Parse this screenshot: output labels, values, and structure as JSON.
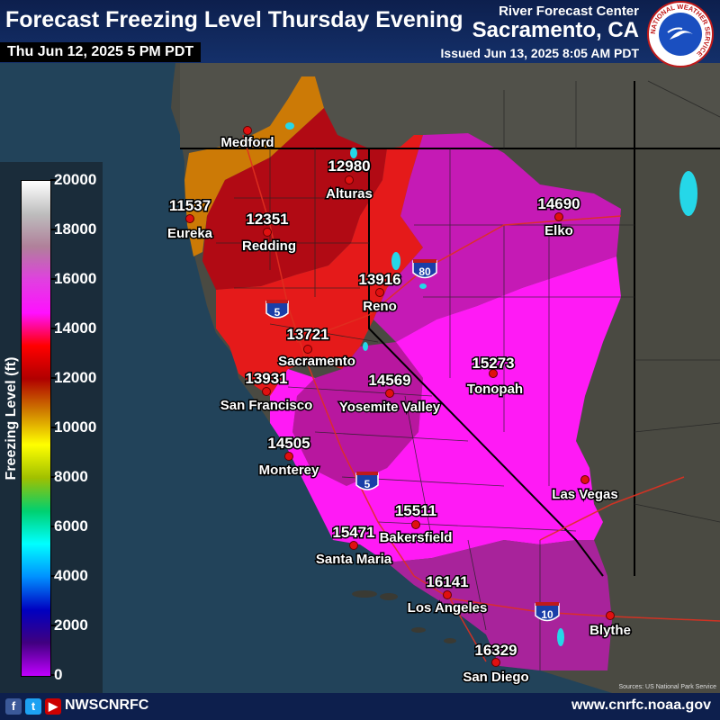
{
  "header": {
    "title": "Forecast Freezing Level Thursday Evening",
    "valid_time": "Thu Jun 12, 2025 5 PM PDT",
    "office_line1": "River Forecast Center",
    "office_line2": "Sacramento, CA",
    "issued": "Issued Jun 13, 2025 8:05 AM PDT",
    "logo_text": "NATIONAL WEATHER SERVICE"
  },
  "legend": {
    "title": "Freezing Level (ft)",
    "ticks": [
      "20000",
      "18000",
      "16000",
      "14000",
      "12000",
      "10000",
      "8000",
      "6000",
      "4000",
      "2000",
      "0"
    ],
    "colors": [
      "#ffffff",
      "#bdbdbd",
      "#b0809a",
      "#e040e0",
      "#ff10ff",
      "#ff0000",
      "#b00000",
      "#d08000",
      "#ffff00",
      "#a0c000",
      "#00d070",
      "#00ffff",
      "#0090ff",
      "#0000c0",
      "#400080",
      "#c000ff"
    ]
  },
  "cities": [
    {
      "name": "Medford",
      "value": ""
    },
    {
      "name": "Alturas",
      "value": "12980"
    },
    {
      "name": "Eureka",
      "value": "11537"
    },
    {
      "name": "Redding",
      "value": "12351"
    },
    {
      "name": "Elko",
      "value": "14690"
    },
    {
      "name": "Reno",
      "value": "13916"
    },
    {
      "name": "Sacramento",
      "value": "13721"
    },
    {
      "name": "San Francisco",
      "value": "13931"
    },
    {
      "name": "Tonopah",
      "value": "15273"
    },
    {
      "name": "Yosemite Valley",
      "value": "14569"
    },
    {
      "name": "Monterey",
      "value": "14505"
    },
    {
      "name": "Las Vegas",
      "value": ""
    },
    {
      "name": "Bakersfield",
      "value": "15511"
    },
    {
      "name": "Santa Maria",
      "value": "15471"
    },
    {
      "name": "Los Angeles",
      "value": "16141"
    },
    {
      "name": "Blythe",
      "value": ""
    },
    {
      "name": "San Diego",
      "value": "16329"
    }
  ],
  "highways": [
    {
      "label": "5",
      "color": "#1a3ea8"
    },
    {
      "label": "80",
      "color": "#1a3ea8"
    },
    {
      "label": "5",
      "color": "#1a3ea8"
    },
    {
      "label": "10",
      "color": "#1a3ea8"
    }
  ],
  "footer": {
    "social_handle": "NWSCNRFC",
    "website": "www.cnrfc.noaa.gov",
    "credit": "Sources: US National Park Service"
  }
}
